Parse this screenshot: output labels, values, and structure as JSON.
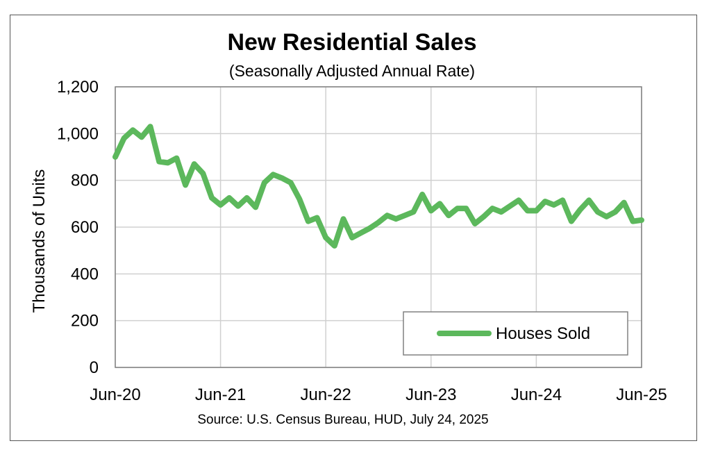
{
  "colors": {
    "series": "#5cb85c",
    "grid": "#d0d0d0",
    "frame": "#555555"
  },
  "chart_data": {
    "type": "line",
    "title": "New Residential Sales",
    "subtitle": "(Seasonally Adjusted Annual Rate)",
    "xlabel": "",
    "ylabel": "Thousands of Units",
    "source": "Source:  U.S. Census Bureau, HUD, July 24, 2025",
    "ylim": [
      0,
      1200
    ],
    "yticks": [
      0,
      200,
      400,
      600,
      800,
      1000,
      1200
    ],
    "ytick_labels": [
      "0",
      "200",
      "400",
      "600",
      "800",
      "1,000",
      "1,200"
    ],
    "xtick_labels": [
      "Jun-20",
      "Jun-21",
      "Jun-22",
      "Jun-23",
      "Jun-24",
      "Jun-25"
    ],
    "xtick_positions": [
      0,
      12,
      24,
      36,
      48,
      60
    ],
    "x_range": [
      0,
      60
    ],
    "legend": {
      "position": "bottom-right",
      "entries": [
        "Houses Sold"
      ]
    },
    "series": [
      {
        "name": "Houses Sold",
        "x": [
          0,
          1,
          2,
          3,
          4,
          5,
          6,
          7,
          8,
          9,
          10,
          11,
          12,
          13,
          14,
          15,
          16,
          17,
          18,
          19,
          20,
          21,
          22,
          23,
          24,
          25,
          26,
          27,
          28,
          29,
          30,
          31,
          32,
          33,
          34,
          35,
          36,
          37,
          38,
          39,
          40,
          41,
          42,
          43,
          44,
          45,
          46,
          47,
          48,
          49,
          50,
          51,
          52,
          53,
          54,
          55,
          56,
          57,
          58,
          59,
          60
        ],
        "values": [
          900,
          980,
          1015,
          985,
          1030,
          880,
          875,
          895,
          780,
          870,
          830,
          725,
          695,
          725,
          690,
          725,
          685,
          790,
          825,
          810,
          790,
          720,
          625,
          640,
          555,
          520,
          635,
          555,
          575,
          595,
          620,
          650,
          635,
          650,
          665,
          740,
          670,
          700,
          650,
          680,
          680,
          615,
          645,
          680,
          665,
          690,
          715,
          670,
          670,
          710,
          695,
          715,
          625,
          675,
          715,
          665,
          645,
          665,
          705,
          625,
          630
        ]
      }
    ]
  }
}
